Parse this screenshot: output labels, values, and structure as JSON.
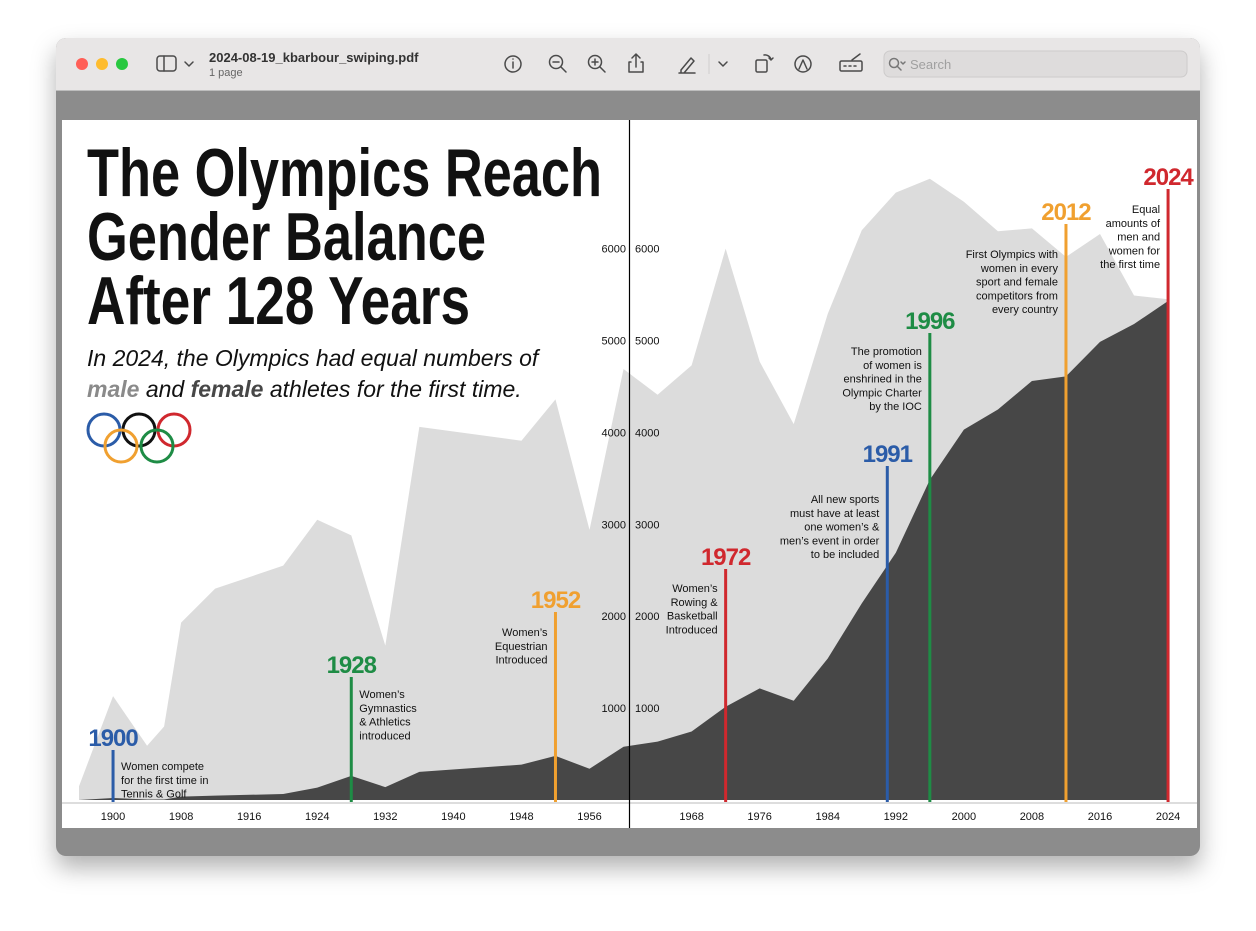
{
  "window": {
    "title": "2024-08-19_kbarbour_swiping.pdf",
    "subtitle": "1 page",
    "search_placeholder": "Search"
  },
  "chart_data": {
    "type": "area",
    "title": [
      "The Olympics Reach",
      "Gender Balance",
      "After 128 Years"
    ],
    "subtitle": [
      "In 2024, the Olympics had equal numbers of",
      "and",
      "athletes for the first time."
    ],
    "x": [
      1896,
      1900,
      1904,
      1906,
      1908,
      1912,
      1920,
      1924,
      1928,
      1932,
      1936,
      1948,
      1952,
      1956,
      1960,
      1964,
      1968,
      1972,
      1976,
      1980,
      1984,
      1988,
      1992,
      1996,
      2000,
      2004,
      2008,
      2012,
      2016,
      2020,
      2024
    ],
    "series": [
      {
        "name": "male",
        "color": "#dcdcdc",
        "values": [
          150,
          1130,
          590,
          800,
          1930,
          2300,
          2550,
          3050,
          2880,
          1680,
          4060,
          3910,
          4360,
          2940,
          4690,
          4410,
          4730,
          6000,
          4770,
          4090,
          5290,
          6200,
          6610,
          6760,
          6510,
          6190,
          6220,
          5910,
          6160,
          5490,
          5450
        ]
      },
      {
        "name": "female",
        "color": "#474747",
        "values": [
          0,
          22,
          6,
          6,
          37,
          48,
          65,
          135,
          262,
          140,
          306,
          385,
          480,
          340,
          580,
          635,
          745,
          1015,
          1215,
          1080,
          1540,
          2140,
          2690,
          3485,
          4030,
          4250,
          4560,
          4610,
          4985,
          5180,
          5430
        ]
      }
    ],
    "xlim": [
      1894,
      2027.4
    ],
    "ylim": [
      0,
      7400
    ],
    "xticks": [
      1900,
      1908,
      1916,
      1924,
      1932,
      1940,
      1948,
      1956,
      1968,
      1976,
      1984,
      1992,
      2000,
      2008,
      2016,
      2024
    ],
    "yticks": [
      1000,
      2000,
      3000,
      4000,
      5000,
      6000
    ],
    "annotations": [
      {
        "year": 1900,
        "color": "#2b5ca8",
        "text": [
          "Women compete",
          "for the first time in",
          "Tennis & Golf"
        ]
      },
      {
        "year": 1928,
        "color": "#1e8c45",
        "text": [
          "Women’s",
          "Gymnastics",
          "& Athletics",
          "introduced"
        ]
      },
      {
        "year": 1952,
        "color": "#f0a030",
        "text": [
          "Women’s",
          "Equestrian",
          "Introduced"
        ]
      },
      {
        "year": 1972,
        "color": "#d0282e",
        "text": [
          "Women’s",
          "Rowing &",
          "Basketball",
          "Introduced"
        ]
      },
      {
        "year": 1991,
        "color": "#2b5ca8",
        "text": [
          "All new sports",
          "must have at least",
          "one women’s &",
          "men’s event in order",
          "to be included"
        ]
      },
      {
        "year": 1996,
        "color": "#1e8c45",
        "text": [
          "The promotion",
          "of women is",
          "enshrined in the",
          "Olympic Charter",
          "by the IOC"
        ]
      },
      {
        "year": 2012,
        "color": "#f0a030",
        "text": [
          "First Olympics with",
          "women in every",
          "sport and female",
          "competitors from",
          "every country"
        ]
      },
      {
        "year": 2024,
        "color": "#d0282e",
        "text": [
          "Equal",
          "amounts of",
          "men and",
          "women for",
          "the first time"
        ]
      }
    ]
  }
}
